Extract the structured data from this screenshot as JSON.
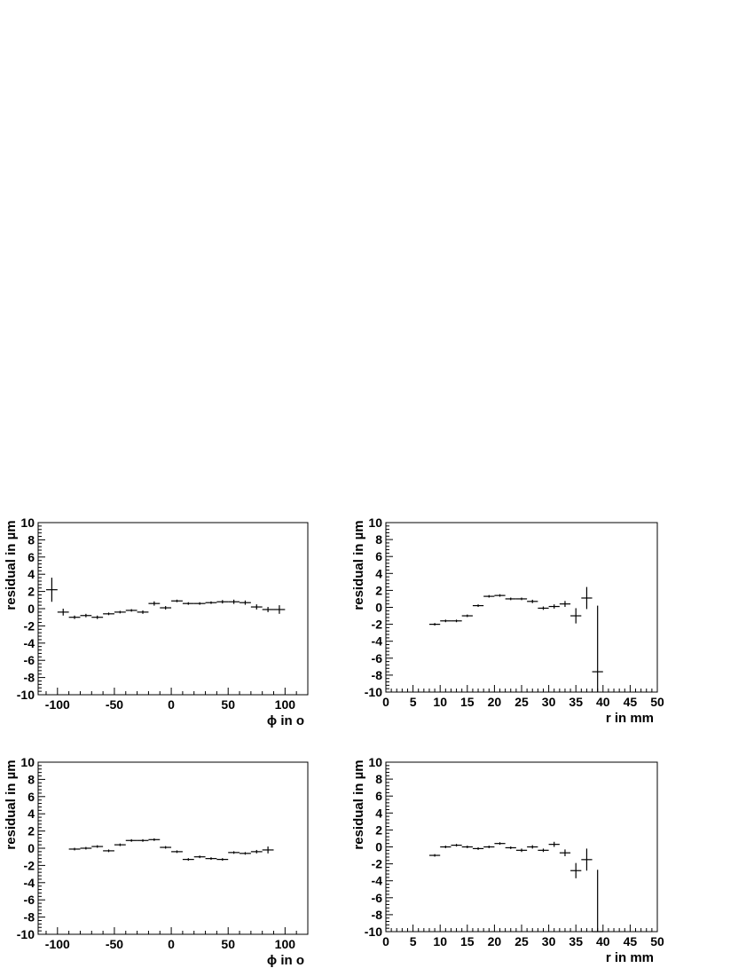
{
  "chart_data": [
    {
      "type": "scatter",
      "ylabel": "residual in µm",
      "xlabel": "ϕ in o",
      "xlim": [
        -117,
        120
      ],
      "ylim": [
        -10,
        10
      ],
      "xticks": [
        -100,
        -50,
        0,
        50,
        100
      ],
      "yticks": [
        -10,
        -8,
        -6,
        -4,
        -2,
        0,
        2,
        4,
        6,
        8,
        10
      ],
      "grid": false,
      "x": [
        -105,
        -95,
        -85,
        -75,
        -65,
        -55,
        -45,
        -35,
        -25,
        -15,
        -5,
        5,
        15,
        25,
        35,
        45,
        55,
        65,
        75,
        85,
        95
      ],
      "y": [
        2.2,
        -0.4,
        -1.0,
        -0.8,
        -1.0,
        -0.6,
        -0.4,
        -0.2,
        -0.4,
        0.6,
        0.1,
        0.9,
        0.6,
        0.6,
        0.7,
        0.8,
        0.8,
        0.7,
        0.2,
        -0.1,
        -0.1
      ],
      "yerr": [
        1.4,
        0.4,
        0.2,
        0.2,
        0.2,
        0.15,
        0.15,
        0.15,
        0.2,
        0.25,
        0.2,
        0.15,
        0.15,
        0.15,
        0.15,
        0.2,
        0.25,
        0.25,
        0.3,
        0.3,
        0.5
      ],
      "xerr": 5
    },
    {
      "type": "scatter",
      "ylabel": "residual in µm",
      "xlabel": "r in mm",
      "xlim": [
        0,
        50
      ],
      "ylim": [
        -10,
        10
      ],
      "xticks": [
        0,
        5,
        10,
        15,
        20,
        25,
        30,
        35,
        40,
        45,
        50
      ],
      "yticks": [
        -10,
        -8,
        -6,
        -4,
        -2,
        0,
        2,
        4,
        6,
        8,
        10
      ],
      "grid": false,
      "x": [
        9,
        11,
        13,
        15,
        17,
        19,
        21,
        23,
        25,
        27,
        29,
        31,
        33,
        35,
        37,
        39
      ],
      "y": [
        -2.0,
        -1.6,
        -1.6,
        -1.0,
        0.2,
        1.3,
        1.4,
        1.0,
        1.0,
        0.7,
        -0.1,
        0.1,
        0.4,
        -1.0,
        1.1,
        -7.6
      ],
      "yerr": [
        0.15,
        0.15,
        0.15,
        0.15,
        0.15,
        0.15,
        0.15,
        0.15,
        0.15,
        0.2,
        0.2,
        0.25,
        0.35,
        0.9,
        1.3,
        7.8
      ],
      "xerr": 1
    },
    {
      "type": "scatter",
      "ylabel": "residual in µm",
      "xlabel": "ϕ in o",
      "xlim": [
        -117,
        120
      ],
      "ylim": [
        -10,
        10
      ],
      "xticks": [
        -100,
        -50,
        0,
        50,
        100
      ],
      "yticks": [
        -10,
        -8,
        -6,
        -4,
        -2,
        0,
        2,
        4,
        6,
        8,
        10
      ],
      "grid": false,
      "x": [
        -85,
        -75,
        -65,
        -55,
        -45,
        -35,
        -25,
        -15,
        -5,
        5,
        15,
        25,
        35,
        45,
        55,
        65,
        75,
        85
      ],
      "y": [
        -0.1,
        0.0,
        0.2,
        -0.3,
        0.4,
        0.9,
        0.9,
        1.0,
        0.1,
        -0.4,
        -1.3,
        -1.0,
        -1.2,
        -1.3,
        -0.5,
        -0.6,
        -0.4,
        -0.2
      ],
      "yerr": [
        0.15,
        0.15,
        0.15,
        0.15,
        0.15,
        0.15,
        0.15,
        0.15,
        0.15,
        0.15,
        0.15,
        0.15,
        0.15,
        0.15,
        0.15,
        0.15,
        0.2,
        0.4
      ],
      "xerr": 5
    },
    {
      "type": "scatter",
      "ylabel": "residual in µm",
      "xlabel": "r in mm",
      "xlim": [
        0,
        50
      ],
      "ylim": [
        -10,
        10
      ],
      "xticks": [
        0,
        5,
        10,
        15,
        20,
        25,
        30,
        35,
        40,
        45,
        50
      ],
      "yticks": [
        -10,
        -8,
        -6,
        -4,
        -2,
        0,
        2,
        4,
        6,
        8,
        10
      ],
      "grid": false,
      "x": [
        9,
        11,
        13,
        15,
        17,
        19,
        21,
        23,
        25,
        27,
        29,
        31,
        33,
        35,
        37,
        39
      ],
      "y": [
        -1.0,
        0.0,
        0.2,
        0.0,
        -0.2,
        0.0,
        0.4,
        -0.1,
        -0.4,
        0.0,
        -0.4,
        0.3,
        -0.7,
        -2.8,
        -1.5,
        -10.0
      ],
      "yerr": [
        0.15,
        0.15,
        0.15,
        0.15,
        0.15,
        0.15,
        0.15,
        0.15,
        0.2,
        0.2,
        0.2,
        0.3,
        0.4,
        0.9,
        1.3,
        7.3
      ],
      "xerr": 1
    }
  ]
}
